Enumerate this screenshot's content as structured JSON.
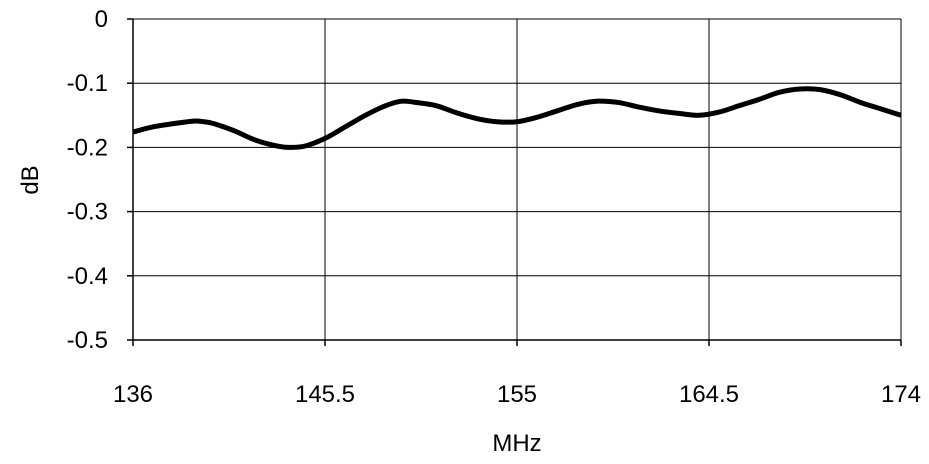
{
  "chart_data": {
    "type": "line",
    "xlabel": "MHz",
    "ylabel": "dB",
    "xlim": [
      136,
      174
    ],
    "ylim": [
      -0.5,
      0
    ],
    "x_ticks": [
      "136",
      "145.5",
      "155",
      "164.5",
      "174"
    ],
    "y_ticks": [
      "0",
      "-0.1",
      "-0.2",
      "-0.3",
      "-0.4",
      "-0.5"
    ],
    "grid": true,
    "legend": "none",
    "series": [
      {
        "color": "#000000",
        "x": [
          136,
          137,
          138,
          139,
          139.5,
          140,
          141,
          142,
          143,
          143.7,
          144.5,
          145.5,
          146.5,
          147.5,
          148.5,
          149.3,
          150,
          151,
          152,
          153,
          154,
          155,
          156,
          157,
          158,
          159,
          160,
          161,
          162,
          163,
          164,
          165,
          166,
          167,
          168,
          169,
          170,
          171,
          172,
          173,
          174
        ],
        "y": [
          -0.176,
          -0.168,
          -0.163,
          -0.159,
          -0.16,
          -0.163,
          -0.174,
          -0.188,
          -0.197,
          -0.2,
          -0.198,
          -0.186,
          -0.168,
          -0.15,
          -0.135,
          -0.128,
          -0.13,
          -0.135,
          -0.146,
          -0.155,
          -0.16,
          -0.16,
          -0.153,
          -0.143,
          -0.133,
          -0.128,
          -0.13,
          -0.137,
          -0.143,
          -0.147,
          -0.15,
          -0.145,
          -0.135,
          -0.125,
          -0.114,
          -0.109,
          -0.11,
          -0.118,
          -0.13,
          -0.14,
          -0.15
        ]
      }
    ]
  }
}
